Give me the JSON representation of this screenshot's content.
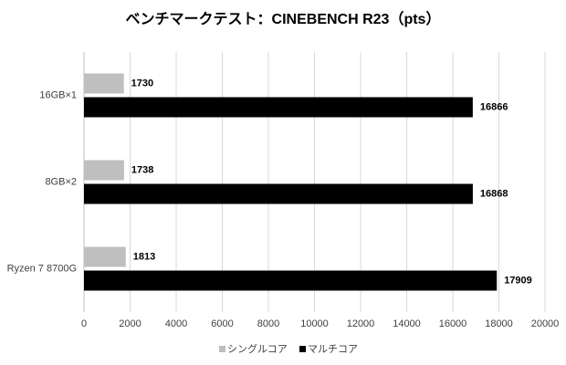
{
  "chart_data": {
    "type": "bar",
    "orientation": "horizontal",
    "title": "ベンチマークテスト：CINEBENCH R23（pts）",
    "categories": [
      "16GB×1",
      "8GB×2",
      "Ryzen 7 8700G"
    ],
    "series": [
      {
        "name": "シングルコア",
        "color": "#bfbfbf",
        "values": [
          1730,
          1738,
          1813
        ]
      },
      {
        "name": "マルチコア",
        "color": "#000000",
        "values": [
          16866,
          16868,
          17909
        ]
      }
    ],
    "xlim": [
      0,
      20000
    ],
    "xticks": [
      0,
      2000,
      4000,
      6000,
      8000,
      10000,
      12000,
      14000,
      16000,
      18000,
      20000
    ],
    "grid": true,
    "legend": "bottom"
  }
}
